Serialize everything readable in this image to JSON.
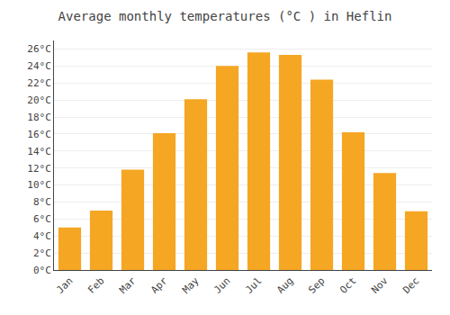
{
  "chart_data": {
    "type": "bar",
    "title": "Average monthly temperatures (°C ) in Heflin",
    "categories": [
      "Jan",
      "Feb",
      "Mar",
      "Apr",
      "May",
      "Jun",
      "Jul",
      "Aug",
      "Sep",
      "Oct",
      "Nov",
      "Dec"
    ],
    "values": [
      5.0,
      7.0,
      11.8,
      16.1,
      20.1,
      24.0,
      25.6,
      25.3,
      22.4,
      16.2,
      11.4,
      6.9
    ],
    "color": "#F5A623",
    "ylim": [
      0,
      27
    ],
    "yticks": [
      {
        "value": 0,
        "label": "0°C"
      },
      {
        "value": 2,
        "label": "2°C"
      },
      {
        "value": 4,
        "label": "4°C"
      },
      {
        "value": 6,
        "label": "6°C"
      },
      {
        "value": 8,
        "label": "8°C"
      },
      {
        "value": 10,
        "label": "10°C"
      },
      {
        "value": 12,
        "label": "12°C"
      },
      {
        "value": 14,
        "label": "14°C"
      },
      {
        "value": 16,
        "label": "16°C"
      },
      {
        "value": 18,
        "label": "18°C"
      },
      {
        "value": 20,
        "label": "20°C"
      },
      {
        "value": 22,
        "label": "22°C"
      },
      {
        "value": 24,
        "label": "24°C"
      },
      {
        "value": 26,
        "label": "26°C"
      }
    ],
    "grid": true
  }
}
